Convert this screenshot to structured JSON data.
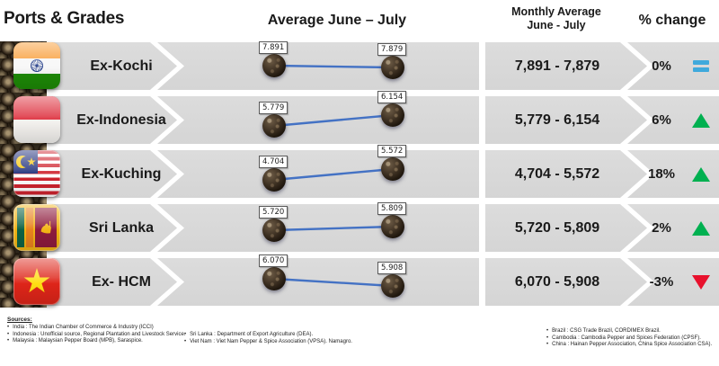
{
  "header": {
    "ports_grades": "Ports & Grades",
    "average_june_july": "Average June – July",
    "monthly_average_line1": "Monthly Average",
    "monthly_average_line2": "June - July",
    "percent_change": "% change"
  },
  "chart_data": {
    "type": "line",
    "title": "Average June – July",
    "x": [
      "June",
      "July"
    ],
    "description": "Per-row two-point sparkline of monthly average pepper prices, June vs July",
    "rows": [
      {
        "port": "Ex-Kochi",
        "country": "India",
        "june": 7891,
        "july": 7879,
        "june_label": "7.891",
        "july_label": "7.879",
        "monthly_average": "7,891 - 7,879",
        "percent_change": "0%",
        "trend": "flat"
      },
      {
        "port": "Ex-Indonesia",
        "country": "Indonesia",
        "june": 5779,
        "july": 6154,
        "june_label": "5.779",
        "july_label": "6.154",
        "monthly_average": "5,779 - 6,154",
        "percent_change": "6%",
        "trend": "up"
      },
      {
        "port": "Ex-Kuching",
        "country": "Malaysia",
        "june": 4704,
        "july": 5572,
        "june_label": "4.704",
        "july_label": "5.572",
        "monthly_average": "4,704 - 5,572",
        "percent_change": "18%",
        "trend": "up"
      },
      {
        "port": "Sri Lanka",
        "country": "Sri Lanka",
        "june": 5720,
        "july": 5809,
        "june_label": "5.720",
        "july_label": "5.809",
        "monthly_average": "5,720 - 5,809",
        "percent_change": "2%",
        "trend": "up"
      },
      {
        "port": "Ex- HCM",
        "country": "Viet Nam",
        "june": 6070,
        "july": 5908,
        "june_label": "6.070",
        "july_label": "5.908",
        "monthly_average": "6,070 - 5,908",
        "percent_change": "-3%",
        "trend": "down"
      }
    ]
  },
  "colors": {
    "band_gray": "#d9d9d9",
    "spark_line_blue": "#4472c4",
    "trend_up_green": "#00b050",
    "trend_down_red": "#e8112d",
    "trend_flat_blue": "#3fa9dc"
  },
  "sources": {
    "title": "Sources:",
    "col1": [
      "India : The Indian Chamber of Commerce & Industry (ICCI)",
      "Indonesia : Unofficial source, Regional Plantation and Livestock Service.",
      "Malaysia : Malaysian Pepper Board (MPB), Saraspice."
    ],
    "col2": [
      "Sri Lanka : Department of Export Agriculture (DEA).",
      "Viet Nam : Viet Nam Pepper & Spice Association (VPSA). Namagro."
    ],
    "col3": [
      "Brazil : CSG Trade Brazil, CORDIMEX Brazil.",
      "Cambodia : Cambodia Pepper and Spices Federation (CPSF).",
      "China : Hainan Pepper Association, China Spice Association CSA)."
    ]
  }
}
